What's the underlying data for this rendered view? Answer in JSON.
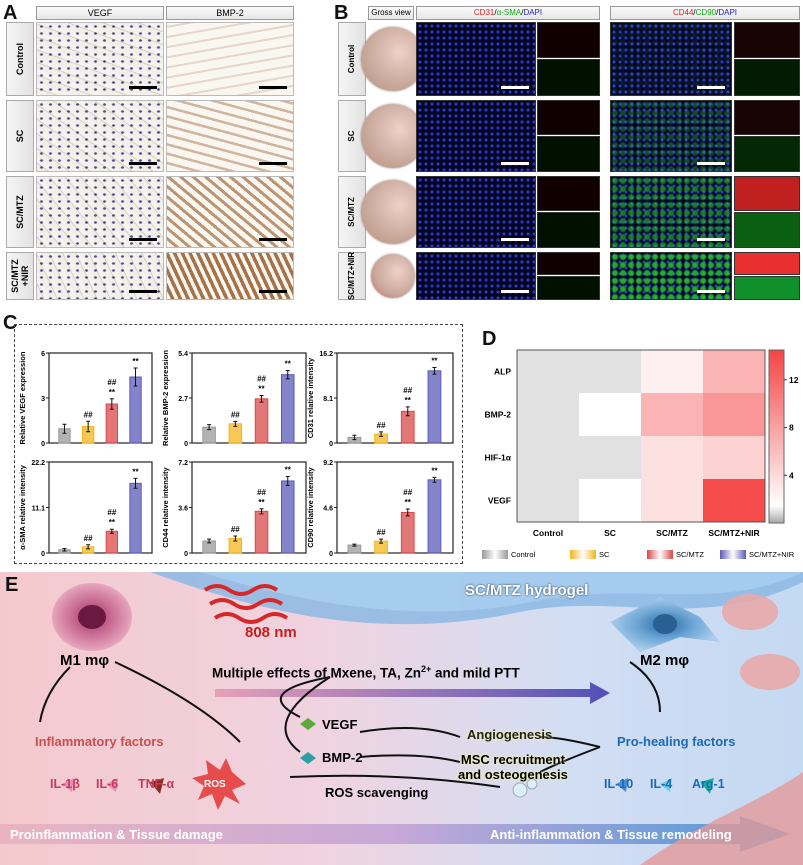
{
  "panel_labels": {
    "a": "A",
    "b": "B",
    "c": "C",
    "d": "D",
    "e": "E"
  },
  "panelA": {
    "columns": [
      "VEGF",
      "BMP-2"
    ],
    "rows": [
      "Control",
      "SC",
      "SC/MTZ",
      "SC/MTZ +NIR"
    ]
  },
  "panelB": {
    "columns": {
      "gross": "Gross view",
      "cd31_a": "CD31",
      "cd31_sep1": "/",
      "cd31_b": "α-SMA",
      "cd31_sep2": "/",
      "cd31_c": "DAPI",
      "cd44_a": "CD44",
      "cd44_sep1": "/",
      "cd44_b": "CD90",
      "cd44_sep2": "/",
      "cd44_c": "DAPI"
    },
    "rows": [
      "Control",
      "SC",
      "SC/MTZ",
      "SC/MTZ+NIR"
    ]
  },
  "chart_data": [
    {
      "type": "bar",
      "ylabel": "Relative VEGF expression",
      "yticks": [
        0,
        3,
        6
      ],
      "ylim": [
        0,
        6
      ],
      "categories": [
        "Control",
        "SC",
        "SC/MTZ",
        "SC/MTZ+NIR"
      ],
      "values": [
        0.95,
        1.1,
        2.6,
        4.4
      ],
      "errors": [
        0.3,
        0.35,
        0.35,
        0.6
      ],
      "annotations": [
        "",
        "##",
        "##\n**",
        "**"
      ]
    },
    {
      "type": "bar",
      "ylabel": "Relative BMP-2 expression",
      "yticks": [
        0.0,
        2.7,
        5.4
      ],
      "ylim": [
        0,
        5.4
      ],
      "categories": [
        "Control",
        "SC",
        "SC/MTZ",
        "SC/MTZ+NIR"
      ],
      "values": [
        0.95,
        1.15,
        2.65,
        4.1
      ],
      "errors": [
        0.15,
        0.15,
        0.2,
        0.25
      ],
      "annotations": [
        "",
        "##",
        "##\n**",
        "**"
      ]
    },
    {
      "type": "bar",
      "ylabel": "CD31 relative intensity",
      "yticks": [
        0.0,
        8.1,
        16.2
      ],
      "ylim": [
        0,
        16.2
      ],
      "categories": [
        "Control",
        "SC",
        "SC/MTZ",
        "SC/MTZ+NIR"
      ],
      "values": [
        1.0,
        1.6,
        5.7,
        13.0
      ],
      "errors": [
        0.4,
        0.4,
        0.8,
        0.6
      ],
      "annotations": [
        "",
        "##",
        "##\n**",
        "**"
      ]
    },
    {
      "type": "bar",
      "ylabel": "α-SMA relative intensity",
      "yticks": [
        0.0,
        11.1,
        22.2
      ],
      "ylim": [
        0,
        22.2
      ],
      "categories": [
        "Control",
        "SC",
        "SC/MTZ",
        "SC/MTZ+NIR"
      ],
      "values": [
        0.8,
        1.5,
        5.3,
        17.0
      ],
      "errors": [
        0.3,
        0.5,
        0.5,
        1.2
      ],
      "annotations": [
        "",
        "##",
        "##\n**",
        "**"
      ]
    },
    {
      "type": "bar",
      "ylabel": "CD44 relative intensity",
      "yticks": [
        0.0,
        3.6,
        7.2
      ],
      "ylim": [
        0,
        7.2
      ],
      "categories": [
        "Control",
        "SC",
        "SC/MTZ",
        "SC/MTZ+NIR"
      ],
      "values": [
        0.95,
        1.15,
        3.3,
        5.7
      ],
      "errors": [
        0.15,
        0.2,
        0.2,
        0.35
      ],
      "annotations": [
        "",
        "##",
        "##\n**",
        "**"
      ]
    },
    {
      "type": "bar",
      "ylabel": "CD90 relative intensity",
      "yticks": [
        0.0,
        4.6,
        9.2
      ],
      "ylim": [
        0,
        9.2
      ],
      "categories": [
        "Control",
        "SC",
        "SC/MTZ",
        "SC/MTZ+NIR"
      ],
      "values": [
        0.8,
        1.2,
        4.1,
        7.4
      ],
      "errors": [
        0.1,
        0.2,
        0.35,
        0.25
      ],
      "annotations": [
        "",
        "##",
        "##\n**",
        "**"
      ]
    },
    {
      "type": "heatmap",
      "rows": [
        "ALP",
        "BMP-2",
        "HIF-1α",
        "VEGF"
      ],
      "columns": [
        "Control",
        "SC",
        "SC/MTZ",
        "SC/MTZ+NIR"
      ],
      "values": [
        [
          1,
          1,
          3,
          7
        ],
        [
          1,
          2,
          7,
          9
        ],
        [
          1,
          1,
          4,
          5
        ],
        [
          1,
          2,
          4,
          14
        ]
      ],
      "colorbar": {
        "range": [
          0,
          14.5
        ],
        "ticks": [
          4,
          8,
          12
        ],
        "low_color": "#a8a8a8",
        "mid_color": "#ffffff",
        "high_color": "#f44444"
      }
    }
  ],
  "legend": [
    {
      "label": "Control",
      "color": "#999999"
    },
    {
      "label": "SC",
      "color": "#f3b51e"
    },
    {
      "label": "SC/MTZ",
      "color": "#d94848"
    },
    {
      "label": "SC/MTZ+NIR",
      "color": "#5b5bb8"
    }
  ],
  "panelE": {
    "hydrogel": "SC/MTZ hydrogel",
    "nir": "808 nm",
    "effects": "Multiple effects of Mxene, TA, Zn",
    "effects_sup": "2+",
    "effects_tail": " and mild PTT",
    "m1": "M1 mφ",
    "m2": "M2 mφ",
    "inflammatory": "Inflammatory factors",
    "il1b": "IL-1β",
    "il6": "IL-6",
    "tnfa": "TNF-α",
    "ros": "ROS",
    "vegf": "VEGF",
    "bmp2": "BMP-2",
    "angio": "Angiogenesis",
    "msc1": "MSC recruitment",
    "msc2": "and osteogenesis",
    "ros_scav": "ROS scavenging",
    "prohealing": "Pro-healing factors",
    "il10": "IL-10",
    "il4": "IL-4",
    "arg1": "Arg-1",
    "bottom_left": "Proinflammation & Tissue damage",
    "bottom_right": "Anti-inflammation & Tissue remodeling"
  }
}
